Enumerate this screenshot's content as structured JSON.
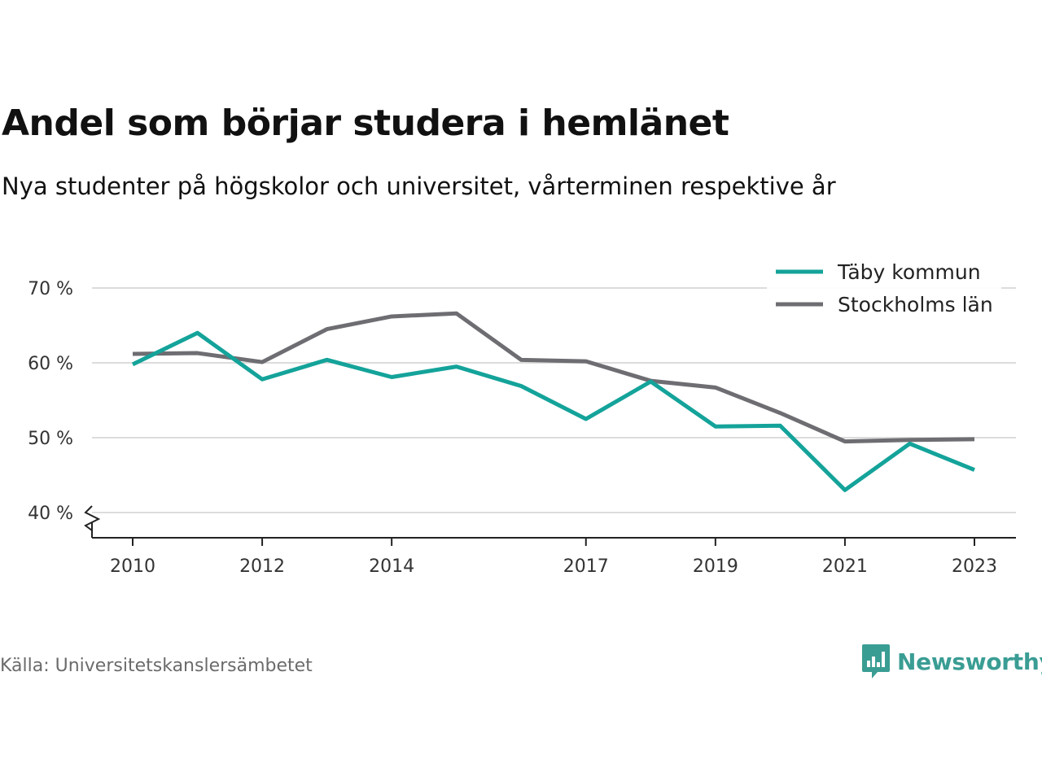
{
  "title": "Andel som börjar studera i hemlänet",
  "subtitle": "Nya studenter på högskolor och universitet, vårterminen respektive år",
  "source": "Källa: Universitetskanslersämbetet",
  "brand": {
    "name": "Newsworthy",
    "icon": "newsworthy-logo-icon",
    "color": "#3a9d94"
  },
  "chart_data": {
    "type": "line",
    "x": [
      2010,
      2011,
      2012,
      2013,
      2014,
      2015,
      2016,
      2017,
      2018,
      2019,
      2020,
      2021,
      2022,
      2023
    ],
    "x_tick_labels": [
      "2010",
      "2012",
      "2014",
      "2017",
      "2019",
      "2021",
      "2023"
    ],
    "x_ticks": [
      2010,
      2012,
      2014,
      2017,
      2019,
      2021,
      2023
    ],
    "y_ticks": [
      40,
      50,
      60,
      70
    ],
    "y_tick_labels": [
      "40 %",
      "50 %",
      "60 %",
      "70 %"
    ],
    "ylim": [
      40,
      70
    ],
    "axis_break": true,
    "grid": true,
    "legend_position": "top-right",
    "series": [
      {
        "name": "Täby kommun",
        "color": "#14a39a",
        "values": [
          59.8,
          64.0,
          57.8,
          60.4,
          58.1,
          59.5,
          56.9,
          52.5,
          57.5,
          51.5,
          51.6,
          43.0,
          49.2,
          45.7
        ]
      },
      {
        "name": "Stockholms län",
        "color": "#6e6d72",
        "values": [
          61.2,
          61.3,
          60.1,
          64.5,
          66.2,
          66.6,
          60.4,
          60.2,
          57.6,
          56.7,
          53.3,
          49.5,
          49.7,
          49.8
        ]
      }
    ]
  }
}
